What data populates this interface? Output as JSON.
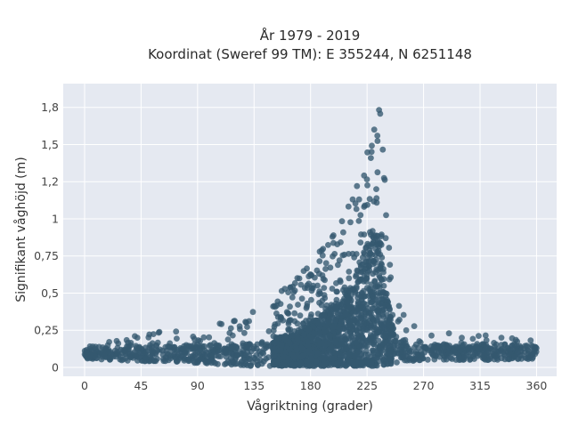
{
  "chart_data": {
    "type": "scatter",
    "title_line1": "År 1979 - 2019",
    "title_line2": "Koordinat (Sweref 99 TM): E 355244, N 6251148",
    "xlabel": "Vågriktning (grader)",
    "ylabel": "Signifikant våghöjd (m)",
    "xlim": [
      -17,
      376
    ],
    "ylim": [
      -0.06,
      1.91
    ],
    "x_ticks": [
      0,
      45,
      90,
      135,
      180,
      225,
      270,
      315,
      360
    ],
    "x_tick_labels": [
      "0",
      "45",
      "90",
      "135",
      "180",
      "225",
      "270",
      "315",
      "360"
    ],
    "y_ticks": [
      0,
      0.25,
      0.5,
      0.75,
      1,
      1.25,
      1.5,
      1.75
    ],
    "y_tick_labels": [
      "0",
      "0,25",
      "0,5",
      "0,75",
      "1",
      "1,2",
      "1,5",
      "1,8"
    ],
    "grid": true,
    "legend": "none",
    "marker_color": "#34596f",
    "plot_background": "#e5e9f1",
    "envelope": {
      "description_note": "approximate distribution of the dense point cloud by direction bin",
      "direction": [
        0,
        20,
        45,
        70,
        90,
        110,
        130,
        150,
        170,
        185,
        200,
        210,
        215,
        220,
        225,
        230,
        233,
        236,
        240,
        245,
        250,
        255,
        260,
        270,
        285,
        300,
        315,
        330,
        345,
        360
      ],
      "min_height": [
        0.06,
        0.05,
        0.04,
        0.04,
        0.03,
        0.02,
        0.01,
        0.01,
        0.01,
        0.01,
        0.01,
        0.01,
        0.01,
        0.01,
        0.01,
        0.01,
        0.01,
        0.01,
        0.02,
        0.02,
        0.03,
        0.03,
        0.04,
        0.05,
        0.05,
        0.05,
        0.05,
        0.05,
        0.05,
        0.06
      ],
      "max_height": [
        0.19,
        0.18,
        0.22,
        0.26,
        0.29,
        0.33,
        0.39,
        0.47,
        0.62,
        0.76,
        0.92,
        1.08,
        1.18,
        1.3,
        1.45,
        1.68,
        1.86,
        1.88,
        1.1,
        0.62,
        0.45,
        0.38,
        0.32,
        0.27,
        0.24,
        0.22,
        0.22,
        0.21,
        0.21,
        0.19
      ],
      "typical_height": [
        0.13,
        0.12,
        0.13,
        0.13,
        0.13,
        0.13,
        0.14,
        0.16,
        0.2,
        0.27,
        0.36,
        0.45,
        0.52,
        0.6,
        0.7,
        0.75,
        0.78,
        0.72,
        0.45,
        0.26,
        0.18,
        0.16,
        0.15,
        0.14,
        0.14,
        0.14,
        0.14,
        0.14,
        0.14,
        0.13
      ]
    },
    "sample_count": 2600
  }
}
